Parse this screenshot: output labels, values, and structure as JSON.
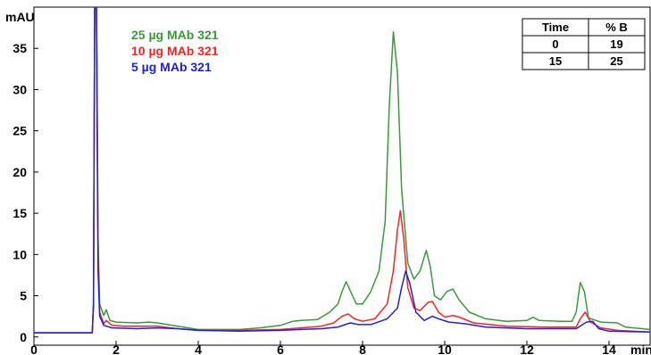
{
  "chart_data": {
    "type": "line",
    "x_unit": "min",
    "y_unit": "mAU",
    "xlim": [
      0,
      15
    ],
    "ylim": [
      -1,
      40
    ],
    "x_ticks": [
      0,
      2,
      4,
      6,
      8,
      10,
      12,
      14
    ],
    "y_ticks": [
      0,
      5,
      10,
      15,
      20,
      25,
      30,
      35
    ],
    "grid": false,
    "legend_position": "top-left",
    "series": [
      {
        "name": "25 µg MAb 321",
        "color": "#3a9a3a",
        "points": [
          [
            0,
            0.5
          ],
          [
            1.42,
            0.5
          ],
          [
            1.45,
            4
          ],
          [
            1.48,
            42
          ],
          [
            1.52,
            42
          ],
          [
            1.56,
            12
          ],
          [
            1.6,
            4
          ],
          [
            1.7,
            2.6
          ],
          [
            1.76,
            3.3
          ],
          [
            1.85,
            2
          ],
          [
            2.0,
            1.8
          ],
          [
            2.5,
            1.7
          ],
          [
            2.8,
            1.8
          ],
          [
            3.0,
            1.7
          ],
          [
            3.5,
            1.3
          ],
          [
            4.0,
            0.9
          ],
          [
            5.0,
            0.9
          ],
          [
            5.5,
            1.1
          ],
          [
            6.0,
            1.4
          ],
          [
            6.3,
            1.9
          ],
          [
            6.5,
            2.0
          ],
          [
            6.9,
            2.1
          ],
          [
            7.2,
            3.0
          ],
          [
            7.4,
            4.0
          ],
          [
            7.5,
            5.5
          ],
          [
            7.6,
            6.7
          ],
          [
            7.7,
            5.6
          ],
          [
            7.85,
            4.0
          ],
          [
            8.0,
            4.0
          ],
          [
            8.2,
            5.5
          ],
          [
            8.4,
            8
          ],
          [
            8.55,
            14
          ],
          [
            8.65,
            28
          ],
          [
            8.75,
            37
          ],
          [
            8.85,
            32
          ],
          [
            8.95,
            18
          ],
          [
            9.1,
            9
          ],
          [
            9.25,
            7
          ],
          [
            9.4,
            8
          ],
          [
            9.55,
            10.5
          ],
          [
            9.65,
            8.5
          ],
          [
            9.75,
            5
          ],
          [
            9.9,
            4.5
          ],
          [
            10.05,
            5.5
          ],
          [
            10.2,
            5.8
          ],
          [
            10.35,
            4.5
          ],
          [
            10.6,
            3.0
          ],
          [
            11.0,
            2.2
          ],
          [
            11.5,
            1.9
          ],
          [
            12.0,
            2.0
          ],
          [
            12.15,
            2.4
          ],
          [
            12.3,
            2.0
          ],
          [
            12.8,
            1.9
          ],
          [
            13.1,
            1.9
          ],
          [
            13.2,
            3
          ],
          [
            13.3,
            6.6
          ],
          [
            13.4,
            5.5
          ],
          [
            13.5,
            2.3
          ],
          [
            13.8,
            1.8
          ],
          [
            14.2,
            1.7
          ],
          [
            14.4,
            1.2
          ],
          [
            15,
            0.9
          ]
        ]
      },
      {
        "name": "10 µg MAb 321",
        "color": "#ff2020",
        "points": [
          [
            0,
            0.5
          ],
          [
            1.42,
            0.5
          ],
          [
            1.45,
            4
          ],
          [
            1.48,
            42
          ],
          [
            1.52,
            42
          ],
          [
            1.56,
            10
          ],
          [
            1.6,
            3
          ],
          [
            1.7,
            1.6
          ],
          [
            1.76,
            2.0
          ],
          [
            1.9,
            1.4
          ],
          [
            2.2,
            1.3
          ],
          [
            3.0,
            1.3
          ],
          [
            3.5,
            1.0
          ],
          [
            4.0,
            0.8
          ],
          [
            5.0,
            0.8
          ],
          [
            6.0,
            0.9
          ],
          [
            6.5,
            1.1
          ],
          [
            7.0,
            1.3
          ],
          [
            7.3,
            1.7
          ],
          [
            7.5,
            2.5
          ],
          [
            7.65,
            2.8
          ],
          [
            7.8,
            2.2
          ],
          [
            8.0,
            1.9
          ],
          [
            8.3,
            2.2
          ],
          [
            8.6,
            4
          ],
          [
            8.75,
            8
          ],
          [
            8.85,
            13
          ],
          [
            8.92,
            15.3
          ],
          [
            9.0,
            12
          ],
          [
            9.1,
            6
          ],
          [
            9.25,
            3.5
          ],
          [
            9.4,
            3.2
          ],
          [
            9.6,
            4.2
          ],
          [
            9.7,
            4.3
          ],
          [
            9.85,
            3.0
          ],
          [
            10.0,
            2.4
          ],
          [
            10.2,
            2.6
          ],
          [
            10.35,
            2.4
          ],
          [
            10.7,
            1.7
          ],
          [
            11.5,
            1.3
          ],
          [
            12.5,
            1.2
          ],
          [
            13.2,
            1.2
          ],
          [
            13.3,
            2.2
          ],
          [
            13.42,
            3.0
          ],
          [
            13.55,
            1.8
          ],
          [
            13.8,
            1.1
          ],
          [
            14.2,
            0.8
          ],
          [
            15,
            0.6
          ]
        ]
      },
      {
        "name": "5 µg MAb 321",
        "color": "#2020e0",
        "points": [
          [
            0,
            0.5
          ],
          [
            1.42,
            0.5
          ],
          [
            1.45,
            4
          ],
          [
            1.48,
            42
          ],
          [
            1.52,
            42
          ],
          [
            1.56,
            8
          ],
          [
            1.6,
            2.5
          ],
          [
            1.7,
            1.4
          ],
          [
            1.9,
            1.1
          ],
          [
            2.5,
            1.0
          ],
          [
            3.0,
            1.1
          ],
          [
            3.5,
            1.0
          ],
          [
            4.0,
            0.8
          ],
          [
            5.0,
            0.7
          ],
          [
            6.0,
            0.8
          ],
          [
            6.5,
            0.9
          ],
          [
            7.0,
            1.0
          ],
          [
            7.4,
            1.2
          ],
          [
            7.7,
            1.7
          ],
          [
            7.9,
            1.5
          ],
          [
            8.2,
            1.5
          ],
          [
            8.6,
            2.2
          ],
          [
            8.85,
            3.5
          ],
          [
            8.95,
            6
          ],
          [
            9.05,
            8.0
          ],
          [
            9.15,
            6.5
          ],
          [
            9.3,
            3.0
          ],
          [
            9.5,
            2.0
          ],
          [
            9.7,
            2.5
          ],
          [
            9.85,
            2.2
          ],
          [
            10.1,
            1.8
          ],
          [
            10.5,
            1.6
          ],
          [
            11.0,
            1.2
          ],
          [
            12.0,
            1.0
          ],
          [
            13.2,
            1.0
          ],
          [
            13.45,
            1.8
          ],
          [
            13.6,
            1.9
          ],
          [
            13.75,
            1.0
          ],
          [
            14.0,
            0.7
          ],
          [
            15,
            0.6
          ]
        ]
      }
    ]
  },
  "gradient_table": {
    "headers": [
      "Time",
      "% B"
    ],
    "rows": [
      [
        "0",
        "19"
      ],
      [
        "15",
        "25"
      ]
    ]
  }
}
